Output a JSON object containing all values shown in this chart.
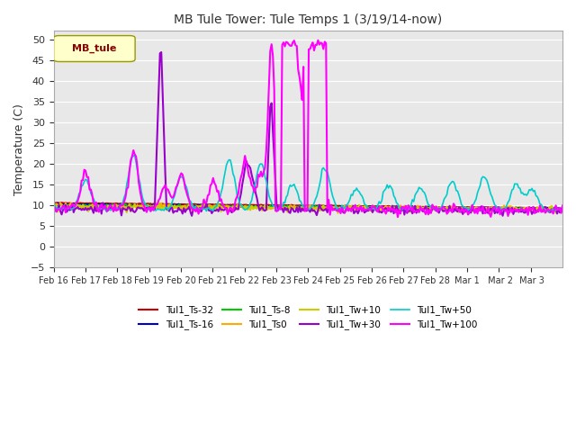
{
  "title": "MB Tule Tower: Tule Temps 1 (3/19/14-now)",
  "ylabel": "Temperature (C)",
  "xlabel": "",
  "plot_bg_color": "#e8e8e8",
  "ylim": [
    -5,
    52
  ],
  "yticks": [
    -5,
    0,
    5,
    10,
    15,
    20,
    25,
    30,
    35,
    40,
    45,
    50
  ],
  "legend_label": "MB_tule",
  "series": [
    {
      "name": "Tul1_Ts-32",
      "color": "#cc0000",
      "lw": 1.5
    },
    {
      "name": "Tul1_Ts-16",
      "color": "#0000cc",
      "lw": 1.5
    },
    {
      "name": "Tul1_Ts-8",
      "color": "#00cc00",
      "lw": 1.5
    },
    {
      "name": "Tul1_Ts0",
      "color": "#ffaa00",
      "lw": 1.5
    },
    {
      "name": "Tul1_Tw+10",
      "color": "#cccc00",
      "lw": 1.5
    },
    {
      "name": "Tul1_Tw+30",
      "color": "#9900cc",
      "lw": 1.5
    },
    {
      "name": "Tul1_Tw+50",
      "color": "#00cccc",
      "lw": 1.2
    },
    {
      "name": "Tul1_Tw+100",
      "color": "#ff00ff",
      "lw": 1.5
    }
  ]
}
